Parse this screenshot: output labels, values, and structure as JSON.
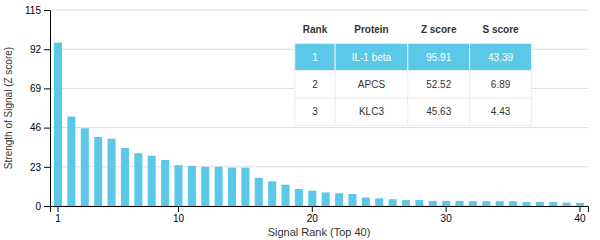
{
  "chart_data": {
    "type": "bar",
    "xlabel": "Signal Rank (Top 40)",
    "ylabel": "Strength of Signal (Z score)",
    "categories": [
      "1",
      null,
      null,
      null,
      null,
      null,
      null,
      null,
      null,
      "10",
      null,
      null,
      null,
      null,
      null,
      null,
      null,
      null,
      null,
      "20",
      null,
      null,
      null,
      null,
      null,
      null,
      null,
      null,
      null,
      "30",
      null,
      null,
      null,
      null,
      null,
      null,
      null,
      null,
      null,
      "40"
    ],
    "values": [
      95.91,
      52.52,
      45.63,
      40.5,
      39.5,
      34.0,
      31.0,
      29.5,
      27.0,
      24.0,
      23.5,
      23.0,
      23.0,
      22.5,
      22.5,
      16.5,
      14.5,
      12.5,
      10.0,
      9.0,
      8.0,
      7.5,
      7.0,
      5.0,
      4.5,
      4.0,
      3.5,
      3.5,
      3.0,
      3.0,
      3.0,
      2.8,
      2.8,
      2.8,
      2.8,
      2.3,
      2.3,
      2.3,
      2.0,
      1.8
    ],
    "color": "#5bc8e8",
    "ylim": [
      0,
      115
    ],
    "yticks": [
      0,
      23,
      46,
      69,
      92,
      115
    ],
    "grid": true,
    "table": {
      "header": [
        "Rank",
        "Protein",
        "Z score",
        "S score"
      ],
      "rows": [
        [
          "1",
          "IL-1 beta",
          "95.91",
          "43.39"
        ],
        [
          "2",
          "APCS",
          "52.52",
          "6.89"
        ],
        [
          "3",
          "KLC3",
          "45.63",
          "4.43"
        ]
      ]
    }
  }
}
